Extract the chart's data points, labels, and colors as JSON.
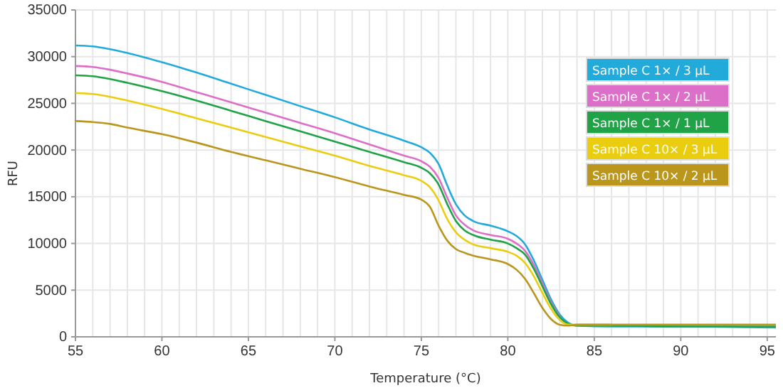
{
  "chart_data": {
    "type": "line",
    "xlabel": "Temperature (°C)",
    "ylabel": "RFU",
    "xlim": [
      55,
      95.5
    ],
    "ylim": [
      0,
      35000
    ],
    "xticks": [
      55,
      {
        "value": 56,
        "label": null
      },
      {
        "value": 57,
        "label": null
      },
      {
        "value": 58,
        "label": null
      },
      {
        "value": 59,
        "label": null
      },
      60,
      {
        "value": 61,
        "label": null
      },
      {
        "value": 62,
        "label": null
      },
      {
        "value": 63,
        "label": null
      },
      {
        "value": 64,
        "label": null
      },
      65,
      {
        "value": 66,
        "label": null
      },
      {
        "value": 67,
        "label": null
      },
      {
        "value": 68,
        "label": null
      },
      {
        "value": 69,
        "label": null
      },
      70,
      {
        "value": 71,
        "label": null
      },
      {
        "value": 72,
        "label": null
      },
      {
        "value": 73,
        "label": null
      },
      {
        "value": 74,
        "label": null
      },
      75,
      {
        "value": 76,
        "label": null
      },
      {
        "value": 77,
        "label": null
      },
      {
        "value": 78,
        "label": null
      },
      {
        "value": 79,
        "label": null
      },
      80,
      {
        "value": 81,
        "label": null
      },
      {
        "value": 82,
        "label": null
      },
      {
        "value": 83,
        "label": null
      },
      {
        "value": 84,
        "label": null
      },
      85,
      {
        "value": 86,
        "label": null
      },
      {
        "value": 87,
        "label": null
      },
      {
        "value": 88,
        "label": null
      },
      {
        "value": 89,
        "label": null
      },
      90,
      {
        "value": 91,
        "label": null
      },
      {
        "value": 92,
        "label": null
      },
      {
        "value": 93,
        "label": null
      },
      {
        "value": 94,
        "label": null
      },
      95
    ],
    "yticks": [
      0,
      5000,
      10000,
      15000,
      20000,
      25000,
      30000,
      35000
    ],
    "grid": true,
    "legend": "top right",
    "marker": "none",
    "line_style": "solid",
    "x": [
      55,
      56,
      57,
      58,
      60,
      62,
      64,
      66,
      68,
      70,
      72,
      74,
      75,
      75.5,
      76,
      76.5,
      77,
      77.5,
      78,
      79,
      80,
      80.5,
      81,
      81.5,
      82,
      82.5,
      83,
      83.5,
      84,
      86,
      90,
      95.5
    ],
    "series": [
      {
        "name": "Sample C 1× / 3 µL",
        "color": "#22aadb",
        "values": [
          31200,
          31100,
          30800,
          30400,
          29400,
          28300,
          27100,
          25900,
          24700,
          23500,
          22200,
          21000,
          20300,
          19700,
          18500,
          16200,
          14200,
          13000,
          12400,
          11900,
          11300,
          10800,
          9900,
          8200,
          6100,
          4000,
          2400,
          1500,
          1200,
          1100,
          1100,
          1000
        ]
      },
      {
        "name": "Sample C 1× / 2 µL",
        "color": "#dc6fc8",
        "values": [
          29000,
          28900,
          28600,
          28200,
          27300,
          26200,
          25100,
          24000,
          22900,
          21800,
          20600,
          19400,
          18800,
          18200,
          17000,
          14900,
          13000,
          12000,
          11400,
          10900,
          10500,
          10000,
          9200,
          7700,
          5700,
          3700,
          2200,
          null,
          null,
          null,
          null,
          null
        ]
      },
      {
        "name": "Sample C 1× / 1 µL",
        "color": "#1fa346",
        "values": [
          28000,
          27900,
          27600,
          27200,
          26300,
          25300,
          24200,
          23100,
          22000,
          20900,
          19800,
          18700,
          18100,
          17500,
          16300,
          14200,
          12400,
          11400,
          10900,
          10400,
          10000,
          9500,
          8800,
          7300,
          5400,
          3500,
          2100,
          1400,
          1200,
          1200,
          1100,
          1100
        ]
      },
      {
        "name": "Sample C 10× / 3 µL",
        "color": "#ebcd10",
        "values": [
          26100,
          26000,
          25700,
          25300,
          24400,
          23400,
          22400,
          21400,
          20400,
          19400,
          18300,
          17300,
          16700,
          16000,
          14600,
          12600,
          11200,
          10400,
          9900,
          9500,
          9100,
          8700,
          7900,
          6500,
          4700,
          3000,
          1800,
          1300,
          1300,
          1300,
          null,
          null
        ]
      },
      {
        "name": "Sample C 10× / 2 µL",
        "color": "#bb961c",
        "values": [
          23100,
          23000,
          22800,
          22400,
          21700,
          20800,
          19800,
          18900,
          18000,
          17100,
          16100,
          15200,
          14700,
          13900,
          11900,
          10300,
          9400,
          9000,
          8700,
          8300,
          7800,
          7200,
          6200,
          4700,
          3100,
          1900,
          1300,
          1200,
          1300,
          1300,
          1300,
          1300
        ]
      }
    ]
  }
}
